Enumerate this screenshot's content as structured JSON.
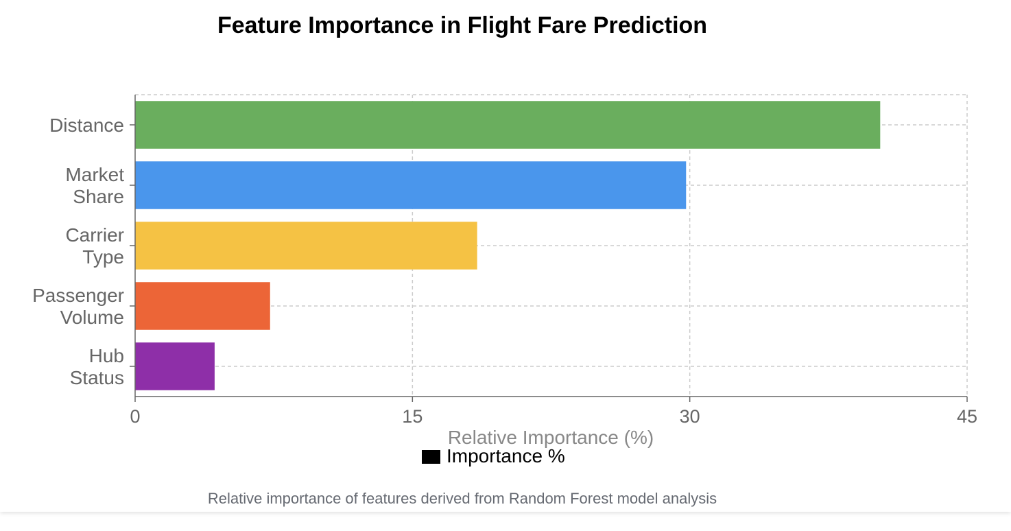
{
  "caption": "Relative importance of features derived from Random Forest model analysis",
  "chart_data": {
    "type": "bar",
    "orientation": "horizontal",
    "title": "Feature Importance in Flight Fare Prediction",
    "categories": [
      [
        "Distance"
      ],
      [
        "Market",
        "Share"
      ],
      [
        "Carrier",
        "Type"
      ],
      [
        "Passenger",
        "Volume"
      ],
      [
        "Hub",
        "Status"
      ]
    ],
    "values": [
      40.3,
      29.8,
      18.5,
      7.3,
      4.3
    ],
    "colors": [
      "#6aae5e",
      "#4a96ec",
      "#f5c244",
      "#ec6537",
      "#8e2fa8"
    ],
    "xlabel": "Relative Importance (%)",
    "ylabel": "",
    "xlim": [
      0,
      45
    ],
    "xticks": [
      0,
      15,
      30,
      45
    ],
    "grid": true,
    "legend": {
      "label": "Importance %",
      "color": "#000000",
      "placement": "bottom"
    }
  }
}
